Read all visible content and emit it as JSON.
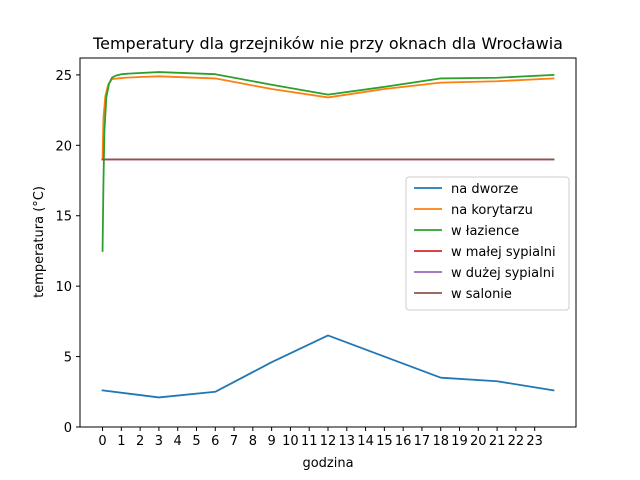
{
  "chart_data": {
    "type": "line",
    "title": "Temperatury dla grzejników nie przy oknach dla Wrocławia",
    "xlabel": "godzina",
    "ylabel": "temperatura (°C)",
    "xlim": [
      -1.2,
      25.2
    ],
    "ylim": [
      0,
      26.2
    ],
    "xticks": [
      0,
      1,
      2,
      3,
      4,
      5,
      6,
      7,
      8,
      9,
      10,
      11,
      12,
      13,
      14,
      15,
      16,
      17,
      18,
      19,
      20,
      21,
      22,
      23
    ],
    "yticks": [
      0,
      5,
      10,
      15,
      20,
      25
    ],
    "grid": false,
    "legend_position": "center-right",
    "series": [
      {
        "name": "na dworze",
        "color": "#1f77b4",
        "x": [
          0,
          3,
          6,
          9,
          12,
          15,
          18,
          21,
          24
        ],
        "y": [
          2.6,
          2.1,
          2.5,
          4.6,
          6.5,
          5.0,
          3.5,
          3.25,
          2.6
        ]
      },
      {
        "name": "na korytarzu",
        "color": "#ff7f0e",
        "x": [
          0,
          0.05,
          0.15,
          0.3,
          0.5,
          0.8,
          1.2,
          2,
          3,
          6,
          9,
          12,
          15,
          18,
          21,
          24
        ],
        "y": [
          19.0,
          22.0,
          23.5,
          24.3,
          24.7,
          24.75,
          24.8,
          24.85,
          24.9,
          24.75,
          24.0,
          23.4,
          24.0,
          24.45,
          24.55,
          24.75
        ]
      },
      {
        "name": "w łazience",
        "color": "#2ca02c",
        "x": [
          0,
          0.05,
          0.1,
          0.2,
          0.35,
          0.5,
          0.7,
          1.0,
          1.5,
          3,
          6,
          9,
          12,
          15,
          18,
          21,
          24
        ],
        "y": [
          12.5,
          17.5,
          21.0,
          23.4,
          24.4,
          24.8,
          24.95,
          25.05,
          25.1,
          25.2,
          25.05,
          24.3,
          23.6,
          24.15,
          24.75,
          24.8,
          25.0
        ]
      },
      {
        "name": "w małej sypialni",
        "color": "#d62728",
        "x": [
          0,
          24
        ],
        "y": [
          19.0,
          19.0
        ]
      },
      {
        "name": "w dużej sypialni",
        "color": "#9467bd",
        "x": [
          0,
          24
        ],
        "y": [
          19.0,
          19.0
        ]
      },
      {
        "name": "w salonie",
        "color": "#8c564b",
        "x": [
          0,
          24
        ],
        "y": [
          19.0,
          19.0
        ]
      }
    ]
  }
}
